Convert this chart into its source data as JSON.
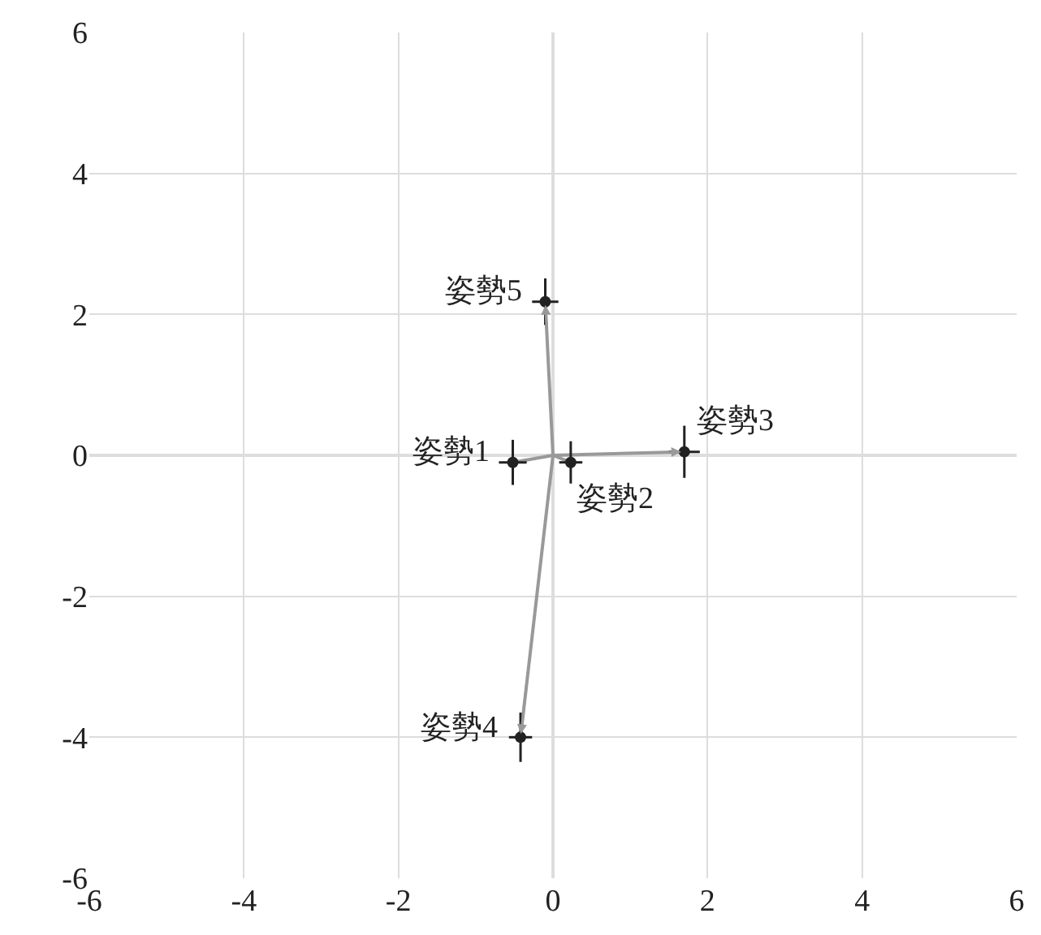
{
  "chart_data": {
    "type": "scatter",
    "xlim": [
      -6,
      6
    ],
    "ylim": [
      -6,
      6
    ],
    "xticks": [
      -6,
      -4,
      -2,
      0,
      2,
      4,
      6
    ],
    "yticks": [
      -6,
      -4,
      -2,
      0,
      2,
      4,
      6
    ],
    "grid": true,
    "series": [
      {
        "type": "line",
        "color": "#999999",
        "x": [
          0,
          -0.52,
          null,
          0,
          0.23,
          null,
          0,
          1.7,
          null,
          0,
          -0.42,
          null,
          0,
          -0.1
        ],
        "values": [
          0,
          -0.1,
          null,
          0,
          -0.1,
          null,
          0,
          0.05,
          null,
          0,
          -4.0,
          null,
          0,
          2.18
        ]
      },
      {
        "color": "#222222",
        "x": [
          -0.52,
          0.23,
          1.7,
          -0.42,
          -0.1
        ],
        "values": [
          -0.1,
          -0.1,
          0.05,
          -4.0,
          2.18
        ],
        "errors": [
          0.32,
          0.3,
          0.37,
          0.35,
          0.33
        ],
        "xerrors": [
          0.18,
          0.15,
          0.2,
          0.15,
          0.17
        ]
      }
    ],
    "annotations": [
      {
        "text": "姿勢1",
        "x": -0.52,
        "y": -0.1
      },
      {
        "text": "姿勢2",
        "x": 0.23,
        "y": -0.1
      },
      {
        "text": "姿勢3",
        "x": 1.7,
        "y": 0.05
      },
      {
        "text": "姿勢4",
        "x": -0.42,
        "y": -4.0
      },
      {
        "text": "姿勢5",
        "x": -0.1,
        "y": 2.18
      }
    ]
  }
}
